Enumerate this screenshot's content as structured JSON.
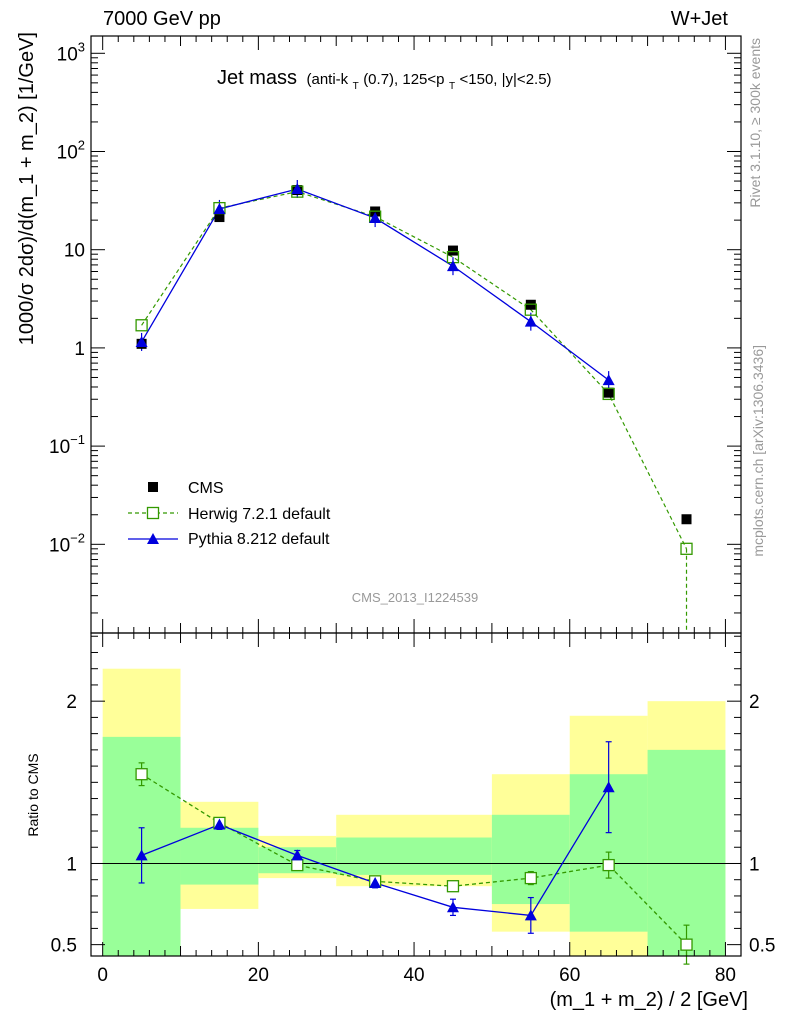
{
  "header": {
    "left_label": "7000 GeV pp",
    "right_label": "W+Jet",
    "side_label_top": "Rivet 3.1.10, ≥ 300k events",
    "side_label_bottom": "mcplots.cern.ch [arXiv:1306.3436]",
    "watermark": "CMS_2013_I1224539"
  },
  "chart_data": [
    {
      "type": "line",
      "panel": "main",
      "title": "Jet mass",
      "title_detail_parts": [
        "(anti-k",
        "T",
        "(0.7), 125<p",
        "T",
        "<150, |y|<2.5)"
      ],
      "ylabel": "1000/σ 2dσ)/d(m_1 + m_2) [1/GeV]",
      "yscale": "log",
      "ylim": [
        0.00125,
        1500
      ],
      "xlim": [
        -1.5,
        82
      ],
      "y_tick_labels": [
        {
          "value": 1000,
          "base": "10",
          "exp": "3"
        },
        {
          "value": 100,
          "base": "10",
          "exp": "2"
        },
        {
          "value": 10,
          "base": "10",
          "exp": ""
        },
        {
          "value": 1,
          "base": "1",
          "exp": ""
        },
        {
          "value": 0.1,
          "base": "10",
          "exp": "−1"
        },
        {
          "value": 0.01,
          "base": "10",
          "exp": "−2"
        }
      ],
      "legend_placement": "lower-left",
      "series": [
        {
          "name": "CMS",
          "color": "#000000",
          "marker": "square-filled",
          "x": [
            5,
            15,
            25,
            35,
            45,
            55,
            65,
            75
          ],
          "y": [
            1.1,
            21.5,
            40.5,
            24.5,
            9.8,
            2.75,
            0.35,
            0.018
          ]
        },
        {
          "name": "Herwig 7.2.1 default",
          "color": "#339900",
          "marker": "square-open",
          "line": "dashed",
          "x": [
            5,
            15,
            25,
            35,
            45,
            55,
            65,
            75
          ],
          "y": [
            1.7,
            26.5,
            39.0,
            21.7,
            8.4,
            2.45,
            0.34,
            0.009
          ]
        },
        {
          "name": "Pythia 8.212 default",
          "color": "#0000dd",
          "marker": "triangle-filled",
          "line": "solid",
          "x": [
            5,
            15,
            25,
            35,
            45,
            55,
            65
          ],
          "y": [
            1.15,
            26.0,
            41.5,
            21.0,
            6.8,
            1.85,
            0.47
          ]
        }
      ]
    },
    {
      "type": "line",
      "panel": "ratio",
      "ylabel": "Ratio to CMS",
      "xlabel": "(m_1 + m_2) / 2 [GeV]",
      "ylim": [
        0.43,
        2.42
      ],
      "xlim": [
        -1.5,
        82
      ],
      "x_ticks": [
        0,
        20,
        40,
        60,
        80
      ],
      "y_ticks": [
        0.5,
        1,
        2
      ],
      "bands": [
        {
          "xlo": 0,
          "xhi": 10,
          "yellow": [
            0.3,
            2.2
          ],
          "green": [
            0.3,
            1.78
          ]
        },
        {
          "xlo": 10,
          "xhi": 20,
          "yellow": [
            0.72,
            1.38
          ],
          "green": [
            0.87,
            1.22
          ]
        },
        {
          "xlo": 20,
          "xhi": 30,
          "yellow": [
            0.91,
            1.17
          ],
          "green": [
            0.94,
            1.1
          ]
        },
        {
          "xlo": 30,
          "xhi": 50,
          "yellow": [
            0.86,
            1.3
          ],
          "green": [
            0.93,
            1.16
          ]
        },
        {
          "xlo": 50,
          "xhi": 60,
          "yellow": [
            0.58,
            1.55
          ],
          "green": [
            0.75,
            1.3
          ]
        },
        {
          "xlo": 60,
          "xhi": 70,
          "yellow": [
            0.3,
            1.91
          ],
          "green": [
            0.58,
            1.55
          ]
        },
        {
          "xlo": 70,
          "xhi": 80,
          "yellow": [
            0.3,
            2.0
          ],
          "green": [
            0.42,
            1.7
          ]
        }
      ],
      "series": [
        {
          "name": "Herwig 7.2.1 default",
          "color": "#339900",
          "x": [
            5,
            15,
            25,
            35,
            45,
            55,
            65,
            75
          ],
          "y": [
            1.55,
            1.25,
            0.99,
            0.89,
            0.86,
            0.91,
            0.99,
            0.5
          ],
          "err": [
            0.07,
            0.03,
            0.02,
            0.02,
            0.02,
            0.04,
            0.08,
            0.12
          ]
        },
        {
          "name": "Pythia 8.212 default",
          "color": "#0000dd",
          "x": [
            5,
            15,
            25,
            35,
            45,
            55,
            65
          ],
          "y": [
            1.05,
            1.24,
            1.05,
            0.88,
            0.73,
            0.68,
            1.47
          ],
          "err": [
            0.17,
            0.03,
            0.03,
            0.03,
            0.05,
            0.11,
            0.28
          ]
        }
      ]
    }
  ]
}
